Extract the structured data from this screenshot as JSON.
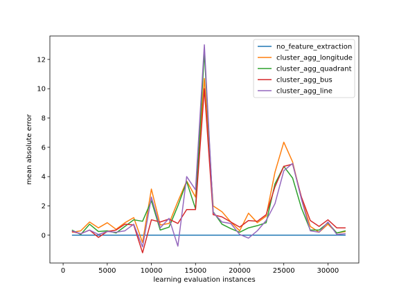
{
  "chart_data": {
    "type": "line",
    "title": "",
    "xlabel": "learning evaluation instances",
    "ylabel": "mean absolute error",
    "xlim": [
      -1500,
      33500
    ],
    "ylim": [
      -1.9,
      13.6
    ],
    "x_ticks": [
      0,
      5000,
      10000,
      15000,
      20000,
      25000,
      30000
    ],
    "y_ticks": [
      0,
      2,
      4,
      6,
      8,
      10,
      12
    ],
    "grid": false,
    "legend_position": "top-right",
    "x": [
      1000,
      2000,
      3000,
      4000,
      5000,
      6000,
      7000,
      8000,
      9000,
      10000,
      11000,
      12000,
      13000,
      14000,
      15000,
      16000,
      17000,
      18000,
      19000,
      20000,
      21000,
      22000,
      23000,
      24000,
      25000,
      26000,
      27000,
      28000,
      29000,
      30000,
      31000,
      32000
    ],
    "series": [
      {
        "name": "no_feature_extraction",
        "color": "#1f77b4",
        "values": [
          0.0,
          0.0,
          0.0,
          0.0,
          0.0,
          0.0,
          0.0,
          0.0,
          0.0,
          0.0,
          0.0,
          0.0,
          0.0,
          0.0,
          0.0,
          0.0,
          0.0,
          0.0,
          0.0,
          0.0,
          0.0,
          0.0,
          0.0,
          0.0,
          0.0,
          0.0,
          0.0,
          0.0,
          0.0,
          0.0,
          0.0,
          0.0
        ]
      },
      {
        "name": "cluster_agg_longitude",
        "color": "#ff7f0e",
        "values": [
          0.2,
          0.3,
          0.9,
          0.5,
          0.85,
          0.4,
          0.85,
          1.2,
          -0.5,
          3.15,
          0.7,
          0.8,
          2.3,
          3.7,
          2.6,
          10.7,
          2.0,
          1.6,
          0.9,
          0.3,
          1.5,
          0.85,
          1.3,
          4.3,
          6.35,
          5.0,
          2.5,
          0.6,
          0.2,
          0.75,
          0.15,
          0.25
        ]
      },
      {
        "name": "cluster_agg_quadrant",
        "color": "#2ca02c",
        "values": [
          0.35,
          0.05,
          0.75,
          0.25,
          0.3,
          0.15,
          0.6,
          1.05,
          0.95,
          2.35,
          0.35,
          0.55,
          2.0,
          3.65,
          1.8,
          12.5,
          1.6,
          0.75,
          0.45,
          0.2,
          0.5,
          0.65,
          0.85,
          3.5,
          4.7,
          3.9,
          1.85,
          0.35,
          0.35,
          0.85,
          0.15,
          0.3
        ]
      },
      {
        "name": "cluster_agg_bus",
        "color": "#d62728",
        "values": [
          0.25,
          0.1,
          0.35,
          -0.15,
          0.25,
          0.35,
          0.75,
          0.7,
          -1.2,
          1.05,
          0.9,
          1.1,
          0.8,
          1.75,
          1.75,
          10.0,
          1.4,
          1.25,
          0.9,
          0.55,
          1.0,
          0.95,
          1.4,
          3.3,
          4.7,
          4.85,
          2.6,
          1.0,
          0.6,
          1.05,
          0.5,
          0.5
        ]
      },
      {
        "name": "cluster_agg_line",
        "color": "#9467bd",
        "values": [
          0.3,
          0.1,
          0.35,
          0.05,
          0.25,
          0.2,
          0.3,
          0.75,
          -0.8,
          2.6,
          0.5,
          1.15,
          -0.75,
          4.0,
          3.1,
          13.0,
          1.55,
          0.9,
          0.8,
          0.05,
          -0.2,
          0.3,
          1.0,
          2.15,
          4.4,
          4.9,
          2.45,
          0.3,
          0.2,
          0.9,
          0.05,
          0.1
        ]
      }
    ]
  }
}
